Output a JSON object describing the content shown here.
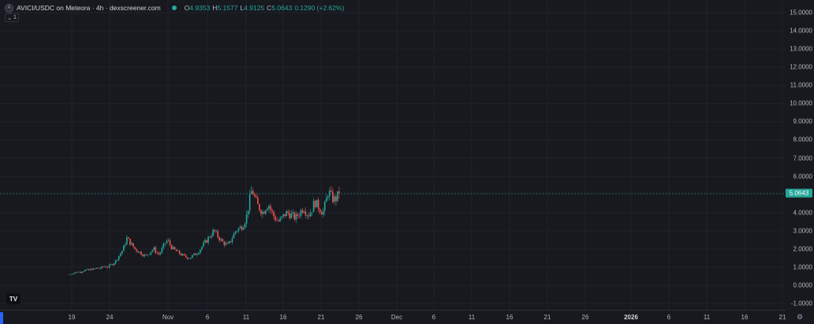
{
  "legend": {
    "symbol_icon": "token-placeholder-icon",
    "symbol_icon_glyph": "A",
    "title": "AVICI/USDC on Meteora · 4h · dexscreener.com",
    "status_color": "#26a69a",
    "open_label": "O",
    "open_value": "4.9353",
    "high_label": "H",
    "high_value": "5.1577",
    "low_label": "L",
    "low_value": "4.9125",
    "close_label": "C",
    "close_value": "5.0643",
    "change": "0.1290 (+2.62%)"
  },
  "indicators": {
    "chevron": "⌄",
    "count": "1"
  },
  "price_axis": {
    "ticks": [
      "15.0000",
      "14.0000",
      "13.0000",
      "12.0000",
      "11.0000",
      "10.0000",
      "9.0000",
      "8.0000",
      "7.0000",
      "6.0000",
      "5.0000",
      "4.0000",
      "3.0000",
      "2.0000",
      "1.0000",
      "0.0000",
      "-1.0000"
    ],
    "last_price": "5.0643"
  },
  "time_axis": {
    "ticks": [
      "19",
      "24",
      "Nov",
      "6",
      "11",
      "16",
      "21",
      "26",
      "Dec",
      "6",
      "11",
      "16",
      "21",
      "26",
      "2026",
      "6",
      "11",
      "16",
      "21"
    ],
    "major": "2026"
  },
  "logo": {
    "text": "TV",
    "icon": "tradingview-logo-icon"
  },
  "settings": {
    "icon": "settings-gear-icon",
    "glyph": "⚙"
  },
  "colors": {
    "up": "#26a69a",
    "down": "#ef5350",
    "background": "#17191f",
    "grid": "#1f222b",
    "last_price_line": "#26a69a"
  },
  "chart_data": {
    "type": "candlestick",
    "interval": "4h",
    "ylim": [
      -1,
      15
    ],
    "x_start": "Oct 19",
    "close_path": [
      0.6,
      0.65,
      0.7,
      0.75,
      0.72,
      0.8,
      0.85,
      0.82,
      0.9,
      0.88,
      0.95,
      0.92,
      1.0,
      1.05,
      1.0,
      1.1,
      1.2,
      1.35,
      1.6,
      1.8,
      2.1,
      2.6,
      2.4,
      2.2,
      2.0,
      1.9,
      1.8,
      1.7,
      1.6,
      1.75,
      1.9,
      2.0,
      1.8,
      1.7,
      2.0,
      2.3,
      2.5,
      2.2,
      2.0,
      1.9,
      1.8,
      1.7,
      1.6,
      1.55,
      1.5,
      1.6,
      1.7,
      1.8,
      2.0,
      2.2,
      2.4,
      2.6,
      2.8,
      3.0,
      2.8,
      2.6,
      2.4,
      2.3,
      2.2,
      2.4,
      2.7,
      3.0,
      3.1,
      3.2,
      3.4,
      3.8,
      4.6,
      5.3,
      4.8,
      4.4,
      4.2,
      4.0,
      4.3,
      4.5,
      4.1,
      3.8,
      3.6,
      3.5,
      3.7,
      3.9,
      4.0,
      3.9,
      3.8,
      3.7,
      3.9,
      4.1,
      4.3,
      4.0,
      3.9,
      4.2,
      4.6,
      4.4,
      4.2,
      4.0,
      4.5,
      5.2,
      4.9,
      4.7,
      4.8,
      5.06
    ]
  }
}
